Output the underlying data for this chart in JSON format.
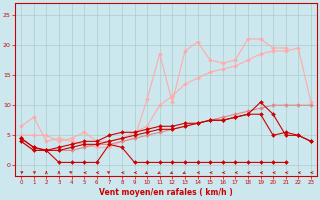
{
  "bg_color": "#cce8ee",
  "grid_color": "#aacccc",
  "xlabel": "Vent moyen/en rafales ( km/h )",
  "xlabel_color": "#cc0000",
  "tick_color": "#cc0000",
  "axis_color": "#cc0000",
  "x_ticks": [
    0,
    1,
    2,
    3,
    4,
    5,
    6,
    7,
    8,
    9,
    10,
    11,
    12,
    13,
    14,
    15,
    16,
    17,
    18,
    19,
    20,
    21,
    22,
    23
  ],
  "ylim": [
    -1.8,
    27
  ],
  "xlim": [
    -0.5,
    23.5
  ],
  "yticks": [
    0,
    5,
    10,
    15,
    20,
    25
  ],
  "lines": [
    {
      "x": [
        0,
        1,
        2,
        3,
        4,
        5,
        6,
        7,
        8,
        9,
        10,
        11,
        12,
        13,
        14,
        15,
        16,
        17,
        18,
        19,
        20,
        21
      ],
      "y": [
        6.5,
        8,
        4,
        4.5,
        4,
        3.5,
        3,
        3,
        4,
        4.5,
        11,
        18.5,
        10.5,
        19,
        20.5,
        17.5,
        17,
        17.5,
        21,
        21,
        19.5,
        19.5
      ],
      "color": "#ffaaaa",
      "marker": "D",
      "markersize": 2.0,
      "linewidth": 0.8
    },
    {
      "x": [
        0,
        1,
        2,
        3,
        4,
        5,
        6,
        7,
        8,
        9,
        10,
        11,
        12,
        13,
        14,
        15,
        16,
        17,
        18,
        19,
        20,
        21,
        22,
        23
      ],
      "y": [
        5.0,
        5.0,
        5.0,
        4.0,
        4.5,
        5.5,
        4.0,
        4.0,
        4.5,
        5.5,
        6.5,
        10.0,
        11.5,
        13.5,
        14.5,
        15.5,
        16.0,
        16.5,
        17.5,
        18.5,
        19.0,
        19.0,
        19.5,
        10.5
      ],
      "color": "#ffaaaa",
      "marker": "D",
      "markersize": 2.0,
      "linewidth": 0.8
    },
    {
      "x": [
        0,
        1,
        2,
        3,
        4,
        5,
        6,
        7,
        8,
        9,
        10,
        11,
        12,
        13,
        14,
        15,
        16,
        17,
        18,
        19,
        20,
        21,
        22,
        23
      ],
      "y": [
        4.0,
        2.5,
        2.5,
        2.5,
        2.5,
        3.0,
        3.5,
        3.5,
        4.0,
        4.5,
        5.0,
        5.5,
        6.0,
        6.5,
        7.0,
        7.5,
        8.0,
        8.5,
        9.0,
        9.5,
        10.0,
        10.0,
        10.0,
        10.0
      ],
      "color": "#dd8888",
      "marker": "D",
      "markersize": 2.0,
      "linewidth": 0.8
    },
    {
      "x": [
        0,
        1,
        2,
        3,
        4,
        5,
        6,
        7,
        8,
        9,
        10,
        11,
        12,
        13,
        14,
        15,
        16,
        17,
        18,
        19,
        20,
        21
      ],
      "y": [
        4.0,
        2.5,
        2.5,
        0.5,
        0.5,
        0.5,
        0.5,
        3.5,
        3.0,
        0.5,
        0.5,
        0.5,
        0.5,
        0.5,
        0.5,
        0.5,
        0.5,
        0.5,
        0.5,
        0.5,
        0.5,
        0.5
      ],
      "color": "#cc0000",
      "marker": "D",
      "markersize": 2.0,
      "linewidth": 0.8
    },
    {
      "x": [
        0,
        1,
        2,
        3,
        4,
        5,
        6,
        7,
        8,
        9,
        10,
        11,
        12,
        13,
        14,
        15,
        16,
        17,
        18,
        19,
        20,
        21,
        22,
        23
      ],
      "y": [
        4.5,
        3.0,
        2.5,
        2.5,
        3.0,
        3.5,
        3.5,
        4.0,
        4.5,
        5.0,
        5.5,
        6.0,
        6.0,
        6.5,
        7.0,
        7.5,
        7.5,
        8.0,
        8.5,
        10.5,
        8.5,
        5.0,
        5.0,
        4.0
      ],
      "color": "#cc0000",
      "marker": "D",
      "markersize": 2.0,
      "linewidth": 0.8
    },
    {
      "x": [
        0,
        1,
        2,
        3,
        4,
        5,
        6,
        7,
        8,
        9,
        10,
        11,
        12,
        13,
        14,
        15,
        16,
        17,
        18,
        19,
        20,
        21,
        22,
        23
      ],
      "y": [
        4.5,
        3.0,
        2.5,
        3.0,
        3.5,
        4.0,
        4.0,
        5.0,
        5.5,
        5.5,
        6.0,
        6.5,
        6.5,
        7.0,
        7.0,
        7.5,
        7.5,
        8.0,
        8.5,
        8.5,
        5.0,
        5.5,
        5.0,
        4.0
      ],
      "color": "#cc0000",
      "marker": "D",
      "markersize": 2.0,
      "linewidth": 0.8
    }
  ],
  "arrow_angles": [
    45,
    45,
    0,
    0,
    315,
    270,
    270,
    315,
    270,
    270,
    225,
    225,
    225,
    225,
    270,
    270,
    270,
    270,
    270,
    270,
    270,
    270,
    270,
    270
  ]
}
